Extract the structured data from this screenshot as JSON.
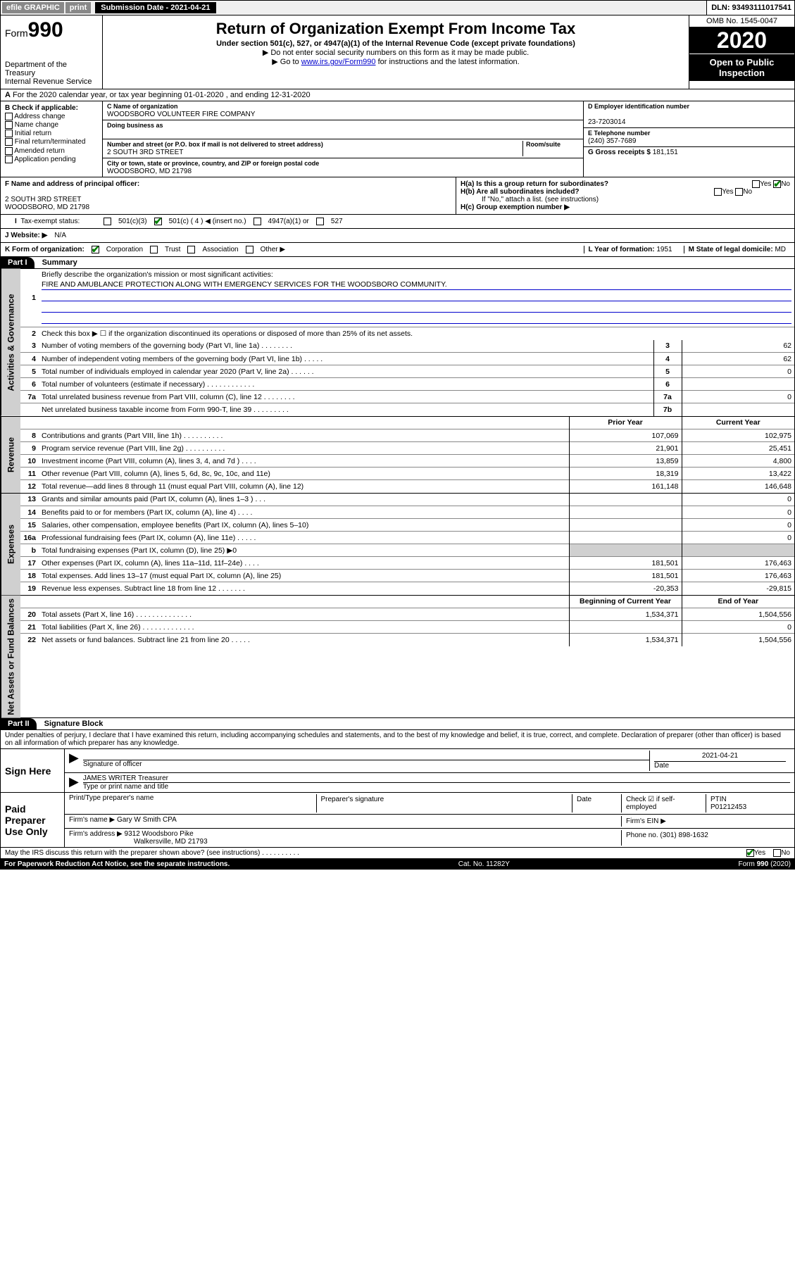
{
  "topbar": {
    "efile": "efile GRAPHIC",
    "print": "print",
    "submission_label": "Submission Date - 2021-04-21",
    "dln": "DLN: 93493111017541"
  },
  "header": {
    "form_prefix": "Form",
    "form_number": "990",
    "dept": "Department of the Treasury\nInternal Revenue Service",
    "title": "Return of Organization Exempt From Income Tax",
    "subtitle": "Under section 501(c), 527, or 4947(a)(1) of the Internal Revenue Code (except private foundations)",
    "note1": "▶ Do not enter social security numbers on this form as it may be made public.",
    "note2_pre": "▶ Go to ",
    "note2_link": "www.irs.gov/Form990",
    "note2_post": " for instructions and the latest information.",
    "omb": "OMB No. 1545-0047",
    "year": "2020",
    "open": "Open to Public Inspection"
  },
  "row_a": "For the 2020 calendar year, or tax year beginning 01-01-2020    , and ending 12-31-2020",
  "box_b": {
    "label": "B Check if applicable:",
    "opts": [
      "Address change",
      "Name change",
      "Initial return",
      "Final return/terminated",
      "Amended return",
      "Application pending"
    ]
  },
  "box_c": {
    "name_lbl": "C Name of organization",
    "name": "WOODSBORO VOLUNTEER FIRE COMPANY",
    "dba_lbl": "Doing business as",
    "addr_lbl": "Number and street (or P.O. box if mail is not delivered to street address)",
    "room_lbl": "Room/suite",
    "addr": "2 SOUTH 3RD STREET",
    "city_lbl": "City or town, state or province, country, and ZIP or foreign postal code",
    "city": "WOODSBORO, MD  21798"
  },
  "box_d": {
    "ein_lbl": "D Employer identification number",
    "ein": "23-7203014",
    "tel_lbl": "E Telephone number",
    "tel": "(240) 357-7689",
    "gross_lbl": "G Gross receipts $",
    "gross": "181,151"
  },
  "box_f": {
    "lbl": "F  Name and address of principal officer:",
    "line1": "2 SOUTH 3RD STREET",
    "line2": "WOODSBORO, MD  21798"
  },
  "box_h": {
    "ha": "H(a)  Is this a group return for subordinates?",
    "ha_yes": "Yes",
    "ha_no": "No",
    "hb": "H(b)  Are all subordinates included?",
    "hb_yes": "Yes",
    "hb_no": "No",
    "hb_note": "If \"No,\" attach a list. (see instructions)",
    "hc": "H(c)  Group exemption number ▶"
  },
  "tax_status": {
    "lbl": "Tax-exempt status:",
    "o1": "501(c)(3)",
    "o2": "501(c) ( 4 ) ◀ (insert no.)",
    "o3": "4947(a)(1) or",
    "o4": "527"
  },
  "website": {
    "lbl": "J   Website: ▶",
    "val": "N/A"
  },
  "row_k": {
    "lbl": "K Form of organization:",
    "opts": [
      "Corporation",
      "Trust",
      "Association",
      "Other ▶"
    ],
    "L_lbl": "L Year of formation:",
    "L_val": "1951",
    "M_lbl": "M State of legal domicile:",
    "M_val": "MD"
  },
  "part1": {
    "hdr": "Part I",
    "title": "Summary",
    "line1": "Briefly describe the organization's mission or most significant activities:",
    "mission": "FIRE AND AMUBLANCE PROTECTION ALONG WITH EMERGENCY SERVICES FOR THE WOODSBORO COMMUNITY.",
    "line2": "Check this box ▶ ☐  if the organization discontinued its operations or disposed of more than 25% of its net assets.",
    "rows_gov": [
      {
        "n": "3",
        "t": "Number of voting members of the governing body (Part VI, line 1a)  .   .   .   .   .   .   .   .",
        "b": "3",
        "v": "62"
      },
      {
        "n": "4",
        "t": "Number of independent voting members of the governing body (Part VI, line 1b)  .   .   .   .   .",
        "b": "4",
        "v": "62"
      },
      {
        "n": "5",
        "t": "Total number of individuals employed in calendar year 2020 (Part V, line 2a)  .   .   .   .   .   .",
        "b": "5",
        "v": "0"
      },
      {
        "n": "6",
        "t": "Total number of volunteers (estimate if necessary)  .   .   .   .   .   .   .   .   .   .   .   .",
        "b": "6",
        "v": ""
      },
      {
        "n": "7a",
        "t": "Total unrelated business revenue from Part VIII, column (C), line 12  .   .   .   .   .   .   .   .",
        "b": "7a",
        "v": "0"
      },
      {
        "n": "",
        "t": "Net unrelated business taxable income from Form 990-T, line 39  .   .   .   .   .   .   .   .   .",
        "b": "7b",
        "v": ""
      }
    ],
    "rev_hdr": {
      "py": "Prior Year",
      "cy": "Current Year"
    },
    "rows_rev": [
      {
        "n": "8",
        "t": "Contributions and grants (Part VIII, line 1h)  .   .   .   .   .   .   .   .   .   .",
        "py": "107,069",
        "cy": "102,975"
      },
      {
        "n": "9",
        "t": "Program service revenue (Part VIII, line 2g)  .   .   .   .   .   .   .   .   .   .",
        "py": "21,901",
        "cy": "25,451"
      },
      {
        "n": "10",
        "t": "Investment income (Part VIII, column (A), lines 3, 4, and 7d )  .   .   .   .",
        "py": "13,859",
        "cy": "4,800"
      },
      {
        "n": "11",
        "t": "Other revenue (Part VIII, column (A), lines 5, 6d, 8c, 9c, 10c, and 11e)",
        "py": "18,319",
        "cy": "13,422"
      },
      {
        "n": "12",
        "t": "Total revenue—add lines 8 through 11 (must equal Part VIII, column (A), line 12)",
        "py": "161,148",
        "cy": "146,648"
      }
    ],
    "rows_exp": [
      {
        "n": "13",
        "t": "Grants and similar amounts paid (Part IX, column (A), lines 1–3 )  .   .   .",
        "py": "",
        "cy": "0"
      },
      {
        "n": "14",
        "t": "Benefits paid to or for members (Part IX, column (A), line 4)  .   .   .   .",
        "py": "",
        "cy": "0"
      },
      {
        "n": "15",
        "t": "Salaries, other compensation, employee benefits (Part IX, column (A), lines 5–10)",
        "py": "",
        "cy": "0"
      },
      {
        "n": "16a",
        "t": "Professional fundraising fees (Part IX, column (A), line 11e)  .   .   .   .   .",
        "py": "",
        "cy": "0"
      },
      {
        "n": "b",
        "t": "Total fundraising expenses (Part IX, column (D), line 25) ▶0",
        "py": "__shade__",
        "cy": "__shade__"
      },
      {
        "n": "17",
        "t": "Other expenses (Part IX, column (A), lines 11a–11d, 11f–24e)  .   .   .   .",
        "py": "181,501",
        "cy": "176,463"
      },
      {
        "n": "18",
        "t": "Total expenses. Add lines 13–17 (must equal Part IX, column (A), line 25)",
        "py": "181,501",
        "cy": "176,463"
      },
      {
        "n": "19",
        "t": "Revenue less expenses. Subtract line 18 from line 12  .   .   .   .   .   .   .",
        "py": "-20,353",
        "cy": "-29,815"
      }
    ],
    "na_hdr": {
      "py": "Beginning of Current Year",
      "cy": "End of Year"
    },
    "rows_na": [
      {
        "n": "20",
        "t": "Total assets (Part X, line 16)  .   .   .   .   .   .   .   .   .   .   .   .   .   .",
        "py": "1,534,371",
        "cy": "1,504,556"
      },
      {
        "n": "21",
        "t": "Total liabilities (Part X, line 26)  .   .   .   .   .   .   .   .   .   .   .   .   .",
        "py": "",
        "cy": "0"
      },
      {
        "n": "22",
        "t": "Net assets or fund balances. Subtract line 21 from line 20  .   .   .   .   .",
        "py": "1,534,371",
        "cy": "1,504,556"
      }
    ]
  },
  "part2": {
    "hdr": "Part II",
    "title": "Signature Block",
    "perjury": "Under penalties of perjury, I declare that I have examined this return, including accompanying schedules and statements, and to the best of my knowledge and belief, it is true, correct, and complete. Declaration of preparer (other than officer) is based on all information of which preparer has any knowledge.",
    "sign_here": "Sign Here",
    "sig_officer": "Signature of officer",
    "sig_date": "2021-04-21",
    "date_lbl": "Date",
    "officer_name": "JAMES WRITER  Treasurer",
    "officer_sub": "Type or print name and title",
    "paid": "Paid Preparer Use Only",
    "prep_name_lbl": "Print/Type preparer's name",
    "prep_sig_lbl": "Preparer's signature",
    "prep_date_lbl": "Date",
    "check_lbl": "Check ☑ if self-employed",
    "ptin_lbl": "PTIN",
    "ptin": "P01212453",
    "firm_name_lbl": "Firm's name    ▶",
    "firm_name": "Gary W Smith CPA",
    "firm_ein_lbl": "Firm's EIN ▶",
    "firm_addr_lbl": "Firm's address ▶",
    "firm_addr1": "9312 Woodsboro Pike",
    "firm_addr2": "Walkersville, MD  21793",
    "phone_lbl": "Phone no.",
    "phone": "(301) 898-1632",
    "discuss": "May the IRS discuss this return with the preparer shown above? (see instructions)   .   .   .   .   .   .   .   .   .   .",
    "discuss_yes": "Yes",
    "discuss_no": "No"
  },
  "footer": {
    "pra": "For Paperwork Reduction Act Notice, see the separate instructions.",
    "cat": "Cat. No. 11282Y",
    "form": "Form 990 (2020)"
  },
  "side_labels": {
    "gov": "Activities & Governance",
    "rev": "Revenue",
    "exp": "Expenses",
    "na": "Net Assets or Fund Balances"
  }
}
